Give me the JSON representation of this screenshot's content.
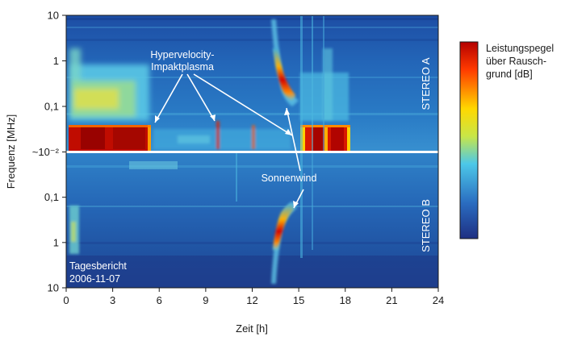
{
  "chart_data": {
    "type": "heatmap",
    "xlabel": "Zeit [h]",
    "ylabel": "Frequenz [MHz]",
    "xlim": [
      0,
      24
    ],
    "x_ticks": [
      "0",
      "3",
      "6",
      "9",
      "12",
      "15",
      "18",
      "21",
      "24"
    ],
    "y_ticks_top": [
      "10",
      "1",
      "0,1",
      "~10⁻²"
    ],
    "y_ticks_bottom": [
      "0,1",
      "1",
      "10"
    ],
    "y_scale": "log",
    "panels": [
      "STEREO A",
      "STEREO B"
    ],
    "colorbar": {
      "title_lines": [
        "Leistungspegel",
        "über Rausch-",
        "grund [dB]"
      ],
      "colors": [
        "#b40000",
        "#ff3a00",
        "#ffd800",
        "#c8e648",
        "#4cc8e8",
        "#2a6cc0",
        "#1e2f82"
      ]
    },
    "annotations": {
      "impact_lines": [
        "Hypervelocity-",
        "Impaktplasma"
      ],
      "solar_wind": "Sonnenwind",
      "report_lines": [
        "Tagesbericht",
        "2006-11-07"
      ]
    },
    "features": [
      {
        "label": "Sonnenwind",
        "panel": "STEREO A",
        "t_start_h": 13.4,
        "t_end_h": 14.3
      },
      {
        "label": "Sonnenwind",
        "panel": "STEREO B",
        "t_start_h": 13.4,
        "t_end_h": 14.3
      },
      {
        "label": "Hypervelocity-Impaktplasma",
        "panel": "STEREO A",
        "t_start_h": 0.3,
        "t_end_h": 5.5
      },
      {
        "label": "Hypervelocity-Impaktplasma",
        "panel": "STEREO A",
        "t_start_h": 15.5,
        "t_end_h": 18.8
      }
    ]
  }
}
